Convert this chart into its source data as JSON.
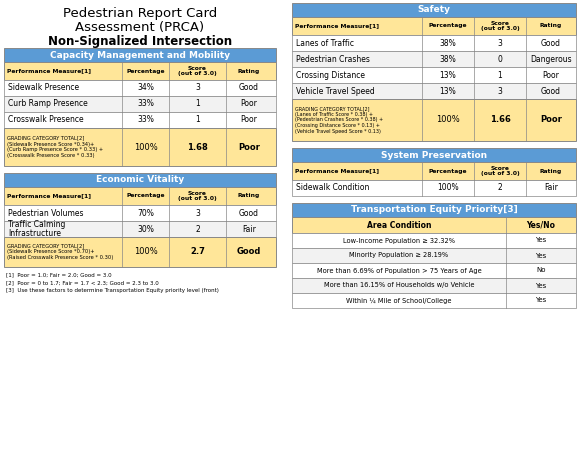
{
  "title_line1": "Pedestrian Report Card",
  "title_line2": "Assessment (PRCA)",
  "title_line3": "Non-Signalized Intersection",
  "colors": {
    "blue_header": "#5B9BD5",
    "yellow_subheader": "#FFE699",
    "white": "#FFFFFF",
    "border": "#AAAAAA"
  },
  "cap_mob": {
    "section_title": "Capacity Management and Mobility",
    "rows": [
      [
        "Sidewalk Presence",
        "34%",
        "3",
        "Good"
      ],
      [
        "Curb Ramp Presence",
        "33%",
        "1",
        "Poor"
      ],
      [
        "Crosswalk Presence",
        "33%",
        "1",
        "Poor"
      ]
    ],
    "total_row": {
      "label": "GRADING CATEGORY TOTAL[2]\n(Sidewalk Presence Score *0.34)+\n(Curb Ramp Presence Score * 0.33) +\n(Crosswalk Presence Score * 0.33)",
      "pct": "100%",
      "score": "1.68",
      "rating": "Poor"
    }
  },
  "econ_vitality": {
    "section_title": "Economic Vitality",
    "rows": [
      [
        "Pedestrian Volumes",
        "70%",
        "3",
        "Good"
      ],
      [
        "Traffic Calming\nInfrastructure",
        "30%",
        "2",
        "Fair"
      ]
    ],
    "total_row": {
      "label": "GRADING CATEGORY TOTAL[2]\n(Sidewalk Presence Score *0.70)+\n(Raised Crosswalk Presence Score * 0.30)",
      "pct": "100%",
      "score": "2.7",
      "rating": "Good"
    }
  },
  "safety": {
    "section_title": "Safety",
    "rows": [
      [
        "Lanes of Traffic",
        "38%",
        "3",
        "Good"
      ],
      [
        "Pedestrian Crashes",
        "38%",
        "0",
        "Dangerous"
      ],
      [
        "Crossing Distance",
        "13%",
        "1",
        "Poor"
      ],
      [
        "Vehicle Travel Speed",
        "13%",
        "3",
        "Good"
      ]
    ],
    "total_row": {
      "label": "GRADING CATEGORY TOTAL[2]\n(Lanes of Traffic Score * 0.38) +\n(Pedestrian Crashes Score * 0.38) +\n(Crossing Distance Score * 0.13) +\n(Vehicle Travel Speed Score * 0.13)",
      "pct": "100%",
      "score": "1.66",
      "rating": "Poor"
    }
  },
  "sys_pres": {
    "section_title": "System Preservation",
    "rows": [
      [
        "Sidewalk Condition",
        "100%",
        "2",
        "Fair"
      ]
    ]
  },
  "equity": {
    "section_title": "Transportation Equity Priority[3]",
    "col_headers": [
      "Area Condition",
      "Yes/No"
    ],
    "rows": [
      [
        "Low-Income Population ≥ 32.32%",
        "Yes"
      ],
      [
        "Minority Population ≥ 28.19%",
        "Yes"
      ],
      [
        "More than 6.69% of Population > 75 Years of Age",
        "No"
      ],
      [
        "More than 16.15% of Households w/o Vehicle",
        "Yes"
      ],
      [
        "Within ¼ Mile of School/College",
        "Yes"
      ]
    ]
  },
  "footnotes": [
    "[1]  Poor = 1.0; Fair = 2.0; Good = 3.0",
    "[2]  Poor = 0 to 1.7; Fair = 1.7 < 2.3; Good = 2.3 to 3.0",
    "[3]  Use these factors to determine Transportation Equity priority level (front)"
  ],
  "col_headers_4": [
    "Performance Measure[1]",
    "Percentage",
    "Score\n(out of 3.0)",
    "Rating"
  ]
}
